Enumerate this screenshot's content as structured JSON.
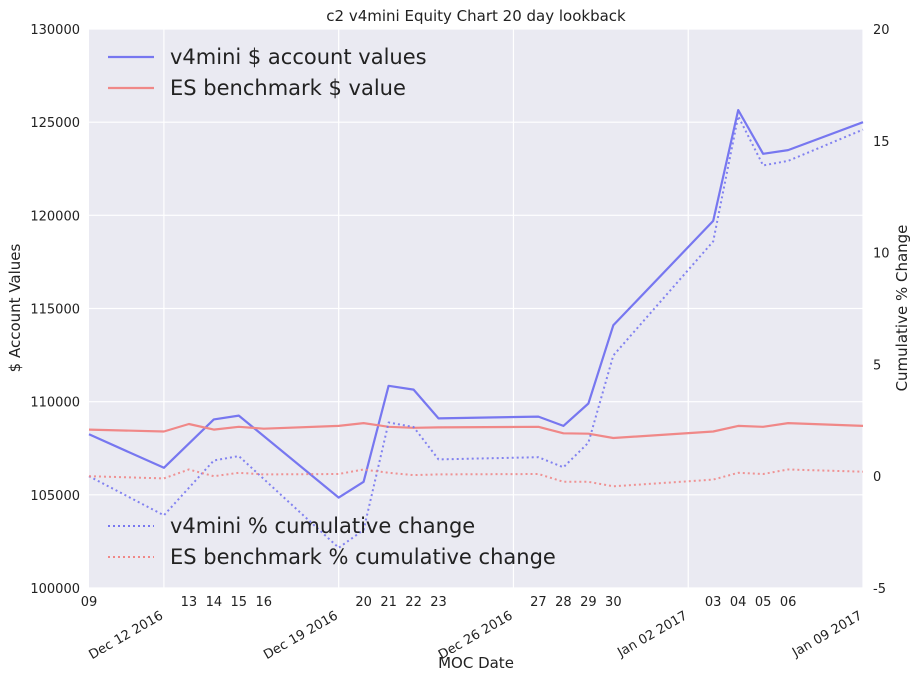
{
  "chart_data": {
    "type": "line",
    "title": "c2 v4mini Equity Chart 20 day lookback",
    "xlabel": "MOC Date",
    "ylabel_left": "$ Account Values",
    "ylabel_right": "Cumulative % Change",
    "ylim_left": [
      100000,
      130000
    ],
    "ylim_right": [
      -5,
      20
    ],
    "xlim": [
      "2016-12-09",
      "2017-01-09"
    ],
    "yticks_left": [
      "100000",
      "105000",
      "110000",
      "115000",
      "120000",
      "125000",
      "130000"
    ],
    "yticks_right": [
      "-5",
      "0",
      "5",
      "10",
      "15",
      "20"
    ],
    "x_minor_ticks": [
      {
        "date": "2016-12-09",
        "label": "09"
      },
      {
        "date": "2016-12-13",
        "label": "13"
      },
      {
        "date": "2016-12-14",
        "label": "14"
      },
      {
        "date": "2016-12-15",
        "label": "15"
      },
      {
        "date": "2016-12-16",
        "label": "16"
      },
      {
        "date": "2016-12-20",
        "label": "20"
      },
      {
        "date": "2016-12-21",
        "label": "21"
      },
      {
        "date": "2016-12-22",
        "label": "22"
      },
      {
        "date": "2016-12-23",
        "label": "23"
      },
      {
        "date": "2016-12-27",
        "label": "27"
      },
      {
        "date": "2016-12-28",
        "label": "28"
      },
      {
        "date": "2016-12-29",
        "label": "29"
      },
      {
        "date": "2016-12-30",
        "label": "30"
      },
      {
        "date": "2017-01-03",
        "label": "03"
      },
      {
        "date": "2017-01-04",
        "label": "04"
      },
      {
        "date": "2017-01-05",
        "label": "05"
      },
      {
        "date": "2017-01-06",
        "label": "06"
      }
    ],
    "x_major_ticks": [
      {
        "date": "2016-12-12",
        "label": "Dec 12 2016"
      },
      {
        "date": "2016-12-19",
        "label": "Dec 19 2016"
      },
      {
        "date": "2016-12-26",
        "label": "Dec 26 2016"
      },
      {
        "date": "2017-01-02",
        "label": "Jan 02 2017"
      },
      {
        "date": "2017-01-09",
        "label": "Jan 09 2017"
      }
    ],
    "grid": true,
    "legend_upper": "top-left",
    "legend_lower": "bottom-left",
    "series": [
      {
        "name": "v4mini $ account values",
        "axis": "left",
        "style": "solid",
        "color": "#7777f0",
        "x": [
          "2016-12-09",
          "2016-12-12",
          "2016-12-14",
          "2016-12-15",
          "2016-12-19",
          "2016-12-20",
          "2016-12-21",
          "2016-12-22",
          "2016-12-23",
          "2016-12-27",
          "2016-12-28",
          "2016-12-29",
          "2016-12-30",
          "2017-01-03",
          "2017-01-04",
          "2017-01-05",
          "2017-01-06",
          "2017-01-09"
        ],
        "y": [
          108250,
          106450,
          109050,
          109250,
          104850,
          105700,
          110850,
          110650,
          109100,
          109200,
          108700,
          109900,
          114100,
          119700,
          125650,
          123300,
          123500,
          125000
        ]
      },
      {
        "name": "ES benchmark $ value",
        "axis": "left",
        "style": "solid",
        "color": "#f08888",
        "x": [
          "2016-12-09",
          "2016-12-12",
          "2016-12-13",
          "2016-12-14",
          "2016-12-15",
          "2016-12-16",
          "2016-12-19",
          "2016-12-20",
          "2016-12-21",
          "2016-12-22",
          "2016-12-23",
          "2016-12-27",
          "2016-12-28",
          "2016-12-29",
          "2016-12-30",
          "2017-01-03",
          "2017-01-04",
          "2017-01-05",
          "2017-01-06",
          "2017-01-09"
        ],
        "y": [
          108500,
          108400,
          108800,
          108500,
          108650,
          108550,
          108700,
          108850,
          108650,
          108600,
          108620,
          108650,
          108300,
          108280,
          108050,
          108400,
          108700,
          108650,
          108850,
          108700
        ]
      },
      {
        "name": "v4mini % cumulative change",
        "axis": "right",
        "style": "dotted",
        "color": "#7777f0",
        "x": [
          "2016-12-09",
          "2016-12-12",
          "2016-12-14",
          "2016-12-15",
          "2016-12-19",
          "2016-12-20",
          "2016-12-21",
          "2016-12-22",
          "2016-12-23",
          "2016-12-27",
          "2016-12-28",
          "2016-12-29",
          "2016-12-30",
          "2017-01-03",
          "2017-01-04",
          "2017-01-05",
          "2017-01-06",
          "2017-01-09"
        ],
        "y": [
          0.0,
          -1.75,
          0.7,
          0.9,
          -3.2,
          -2.4,
          2.4,
          2.2,
          0.75,
          0.85,
          0.4,
          1.5,
          5.4,
          10.5,
          16.1,
          13.9,
          14.1,
          15.5
        ]
      },
      {
        "name": "ES benchmark % cumulative change",
        "axis": "right",
        "style": "dotted",
        "color": "#f08888",
        "x": [
          "2016-12-09",
          "2016-12-12",
          "2016-12-13",
          "2016-12-14",
          "2016-12-15",
          "2016-12-16",
          "2016-12-19",
          "2016-12-20",
          "2016-12-21",
          "2016-12-22",
          "2016-12-23",
          "2016-12-27",
          "2016-12-28",
          "2016-12-29",
          "2016-12-30",
          "2017-01-03",
          "2017-01-04",
          "2017-01-05",
          "2017-01-06",
          "2017-01-09"
        ],
        "y": [
          0.0,
          -0.1,
          0.3,
          0.0,
          0.15,
          0.08,
          0.1,
          0.3,
          0.15,
          0.05,
          0.08,
          0.1,
          -0.25,
          -0.25,
          -0.45,
          -0.15,
          0.15,
          0.1,
          0.3,
          0.2
        ]
      }
    ]
  },
  "colors": {
    "plot_background": "#eaeaf2",
    "grid": "#ffffff",
    "v4mini": "#7777f0",
    "es_benchmark": "#f08888"
  }
}
